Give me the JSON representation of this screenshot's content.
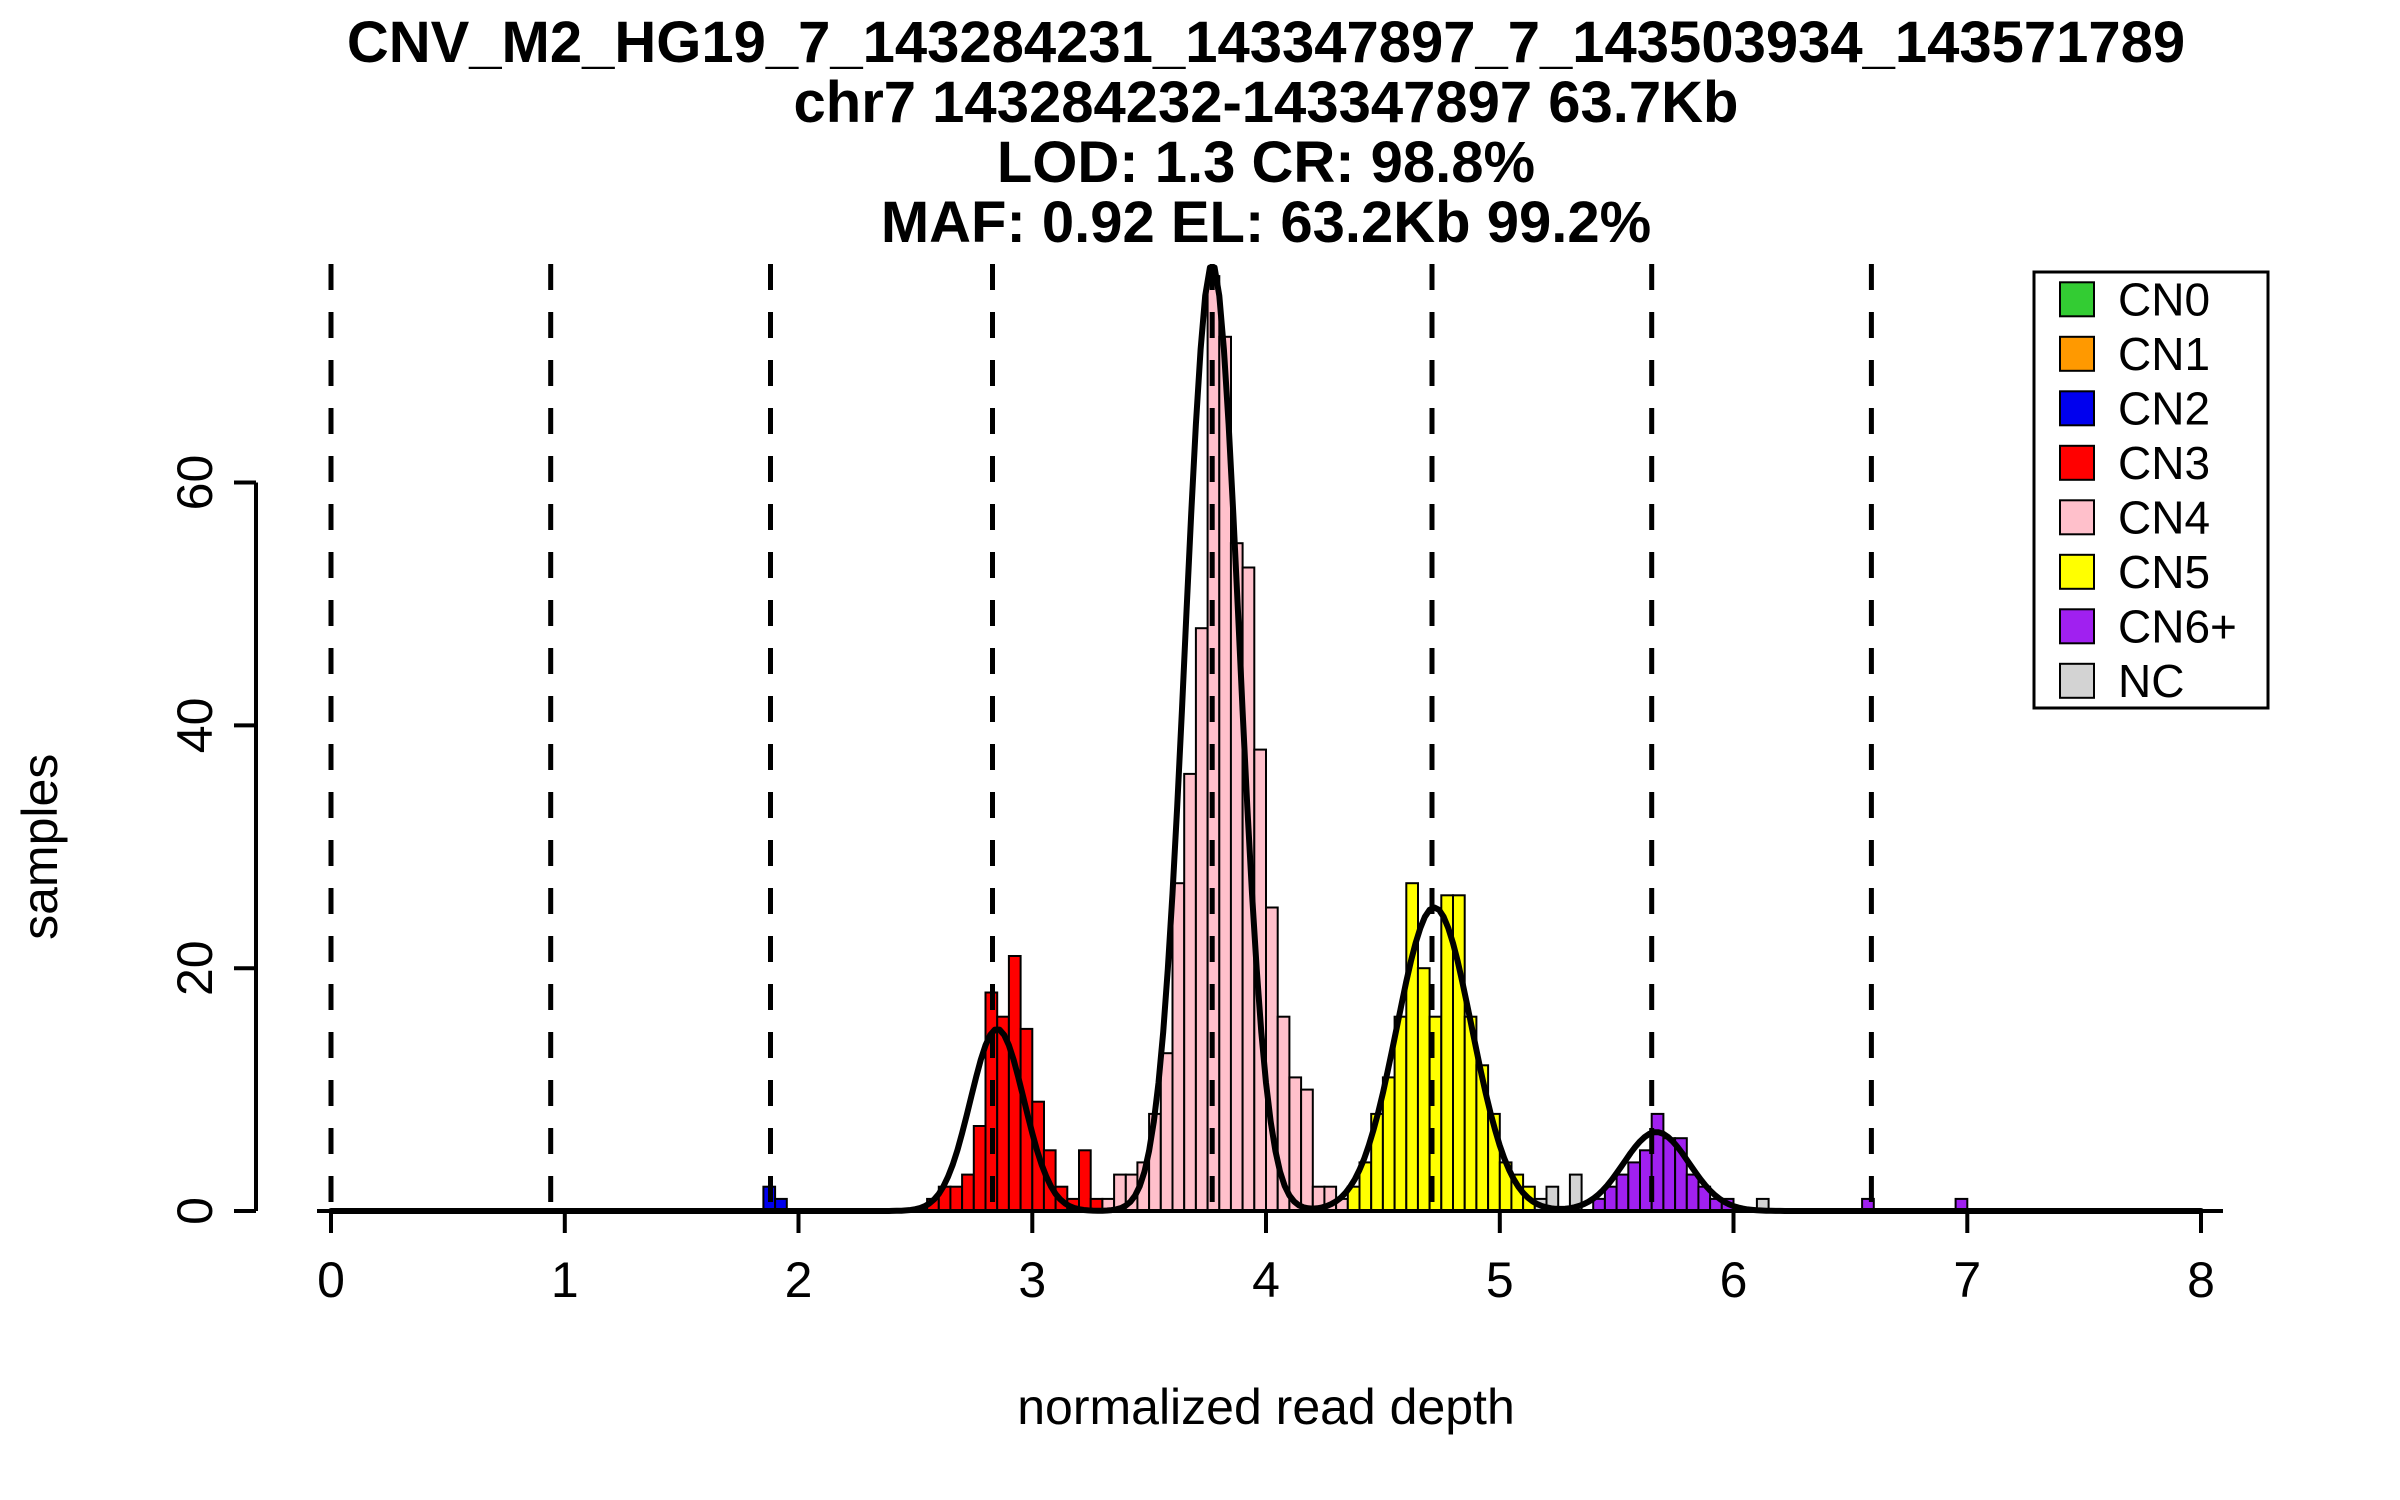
{
  "chart_data": {
    "type": "bar",
    "subtype": "histogram-with-density",
    "title_lines": [
      "CNV_M2_HG19_7_143284231_143347897_7_143503934_143571789",
      "chr7 143284232-143347897 63.7Kb",
      "LOD: 1.3 CR: 98.8%",
      "MAF: 0.92 EL: 63.2Kb 99.2%"
    ],
    "xlabel": "normalized read depth",
    "ylabel": "samples",
    "xlim": [
      0,
      8
    ],
    "ylim": [
      0,
      78
    ],
    "xticks": [
      0,
      1,
      2,
      3,
      4,
      5,
      6,
      7,
      8
    ],
    "yticks": [
      0,
      20,
      40,
      60
    ],
    "bin_width": 0.05,
    "legend_position": "top-right",
    "legend": [
      {
        "label": "CN0",
        "color": "#33cc33"
      },
      {
        "label": "CN1",
        "color": "#ff9900"
      },
      {
        "label": "CN2",
        "color": "#0000ee"
      },
      {
        "label": "CN3",
        "color": "#ff0000"
      },
      {
        "label": "CN4",
        "color": "#ffc0cb"
      },
      {
        "label": "CN5",
        "color": "#ffff00"
      },
      {
        "label": "CN6+",
        "color": "#a020f0"
      },
      {
        "label": "NC",
        "color": "#d3d3d3"
      }
    ],
    "cluster_means": [
      0,
      0.94,
      1.88,
      2.83,
      3.77,
      4.71,
      5.65,
      6.59
    ],
    "curves": [
      {
        "mean": 2.85,
        "sd": 0.115,
        "amp": 15
      },
      {
        "mean": 3.77,
        "sd": 0.115,
        "amp": 78
      },
      {
        "mean": 4.72,
        "sd": 0.16,
        "amp": 25
      },
      {
        "mean": 5.67,
        "sd": 0.14,
        "amp": 6.5
      }
    ],
    "bars": [
      [
        1.875,
        2,
        "CN2"
      ],
      [
        1.925,
        1,
        "CN2"
      ],
      [
        2.575,
        1,
        "CN3"
      ],
      [
        2.625,
        2,
        "CN3"
      ],
      [
        2.675,
        2,
        "CN3"
      ],
      [
        2.725,
        3,
        "CN3"
      ],
      [
        2.775,
        7,
        "CN3"
      ],
      [
        2.825,
        18,
        "CN3"
      ],
      [
        2.875,
        16,
        "CN3"
      ],
      [
        2.925,
        21,
        "CN3"
      ],
      [
        2.975,
        15,
        "CN3"
      ],
      [
        3.025,
        9,
        "CN3"
      ],
      [
        3.075,
        5,
        "CN3"
      ],
      [
        3.125,
        2,
        "CN3"
      ],
      [
        3.175,
        1,
        "CN3"
      ],
      [
        3.225,
        5,
        "CN3"
      ],
      [
        3.275,
        1,
        "CN3"
      ],
      [
        3.325,
        1,
        "CN4"
      ],
      [
        3.375,
        3,
        "CN4"
      ],
      [
        3.425,
        3,
        "CN4"
      ],
      [
        3.475,
        4,
        "CN4"
      ],
      [
        3.525,
        8,
        "CN4"
      ],
      [
        3.575,
        13,
        "CN4"
      ],
      [
        3.625,
        27,
        "CN4"
      ],
      [
        3.675,
        36,
        "CN4"
      ],
      [
        3.725,
        48,
        "CN4"
      ],
      [
        3.775,
        77,
        "CN4"
      ],
      [
        3.825,
        72,
        "CN4"
      ],
      [
        3.875,
        55,
        "CN4"
      ],
      [
        3.925,
        53,
        "CN4"
      ],
      [
        3.975,
        38,
        "CN4"
      ],
      [
        4.025,
        25,
        "CN4"
      ],
      [
        4.075,
        16,
        "CN4"
      ],
      [
        4.125,
        11,
        "CN4"
      ],
      [
        4.175,
        10,
        "CN4"
      ],
      [
        4.225,
        2,
        "CN4"
      ],
      [
        4.275,
        2,
        "CN4"
      ],
      [
        4.325,
        1,
        "CN4"
      ],
      [
        4.375,
        2,
        "CN5"
      ],
      [
        4.425,
        4,
        "CN5"
      ],
      [
        4.475,
        8,
        "CN5"
      ],
      [
        4.525,
        11,
        "CN5"
      ],
      [
        4.575,
        16,
        "CN5"
      ],
      [
        4.625,
        27,
        "CN5"
      ],
      [
        4.675,
        20,
        "CN5"
      ],
      [
        4.725,
        16,
        "CN5"
      ],
      [
        4.775,
        26,
        "CN5"
      ],
      [
        4.825,
        26,
        "CN5"
      ],
      [
        4.875,
        16,
        "CN5"
      ],
      [
        4.925,
        12,
        "CN5"
      ],
      [
        4.975,
        8,
        "CN5"
      ],
      [
        5.025,
        4,
        "CN5"
      ],
      [
        5.075,
        3,
        "CN5"
      ],
      [
        5.125,
        2,
        "CN5"
      ],
      [
        5.175,
        1,
        "NC"
      ],
      [
        5.225,
        2,
        "NC"
      ],
      [
        5.325,
        3,
        "NC"
      ],
      [
        6.125,
        1,
        "NC"
      ],
      [
        5.425,
        1,
        "CN6+"
      ],
      [
        5.475,
        2,
        "CN6+"
      ],
      [
        5.525,
        3,
        "CN6+"
      ],
      [
        5.575,
        4,
        "CN6+"
      ],
      [
        5.625,
        5,
        "CN6+"
      ],
      [
        5.675,
        8,
        "CN6+"
      ],
      [
        5.725,
        6,
        "CN6+"
      ],
      [
        5.775,
        6,
        "CN6+"
      ],
      [
        5.825,
        3,
        "CN6+"
      ],
      [
        5.875,
        2,
        "CN6+"
      ],
      [
        5.925,
        1,
        "CN6+"
      ],
      [
        5.975,
        1,
        "CN6+"
      ],
      [
        6.575,
        1,
        "CN6+"
      ],
      [
        6.975,
        1,
        "CN6+"
      ]
    ]
  }
}
